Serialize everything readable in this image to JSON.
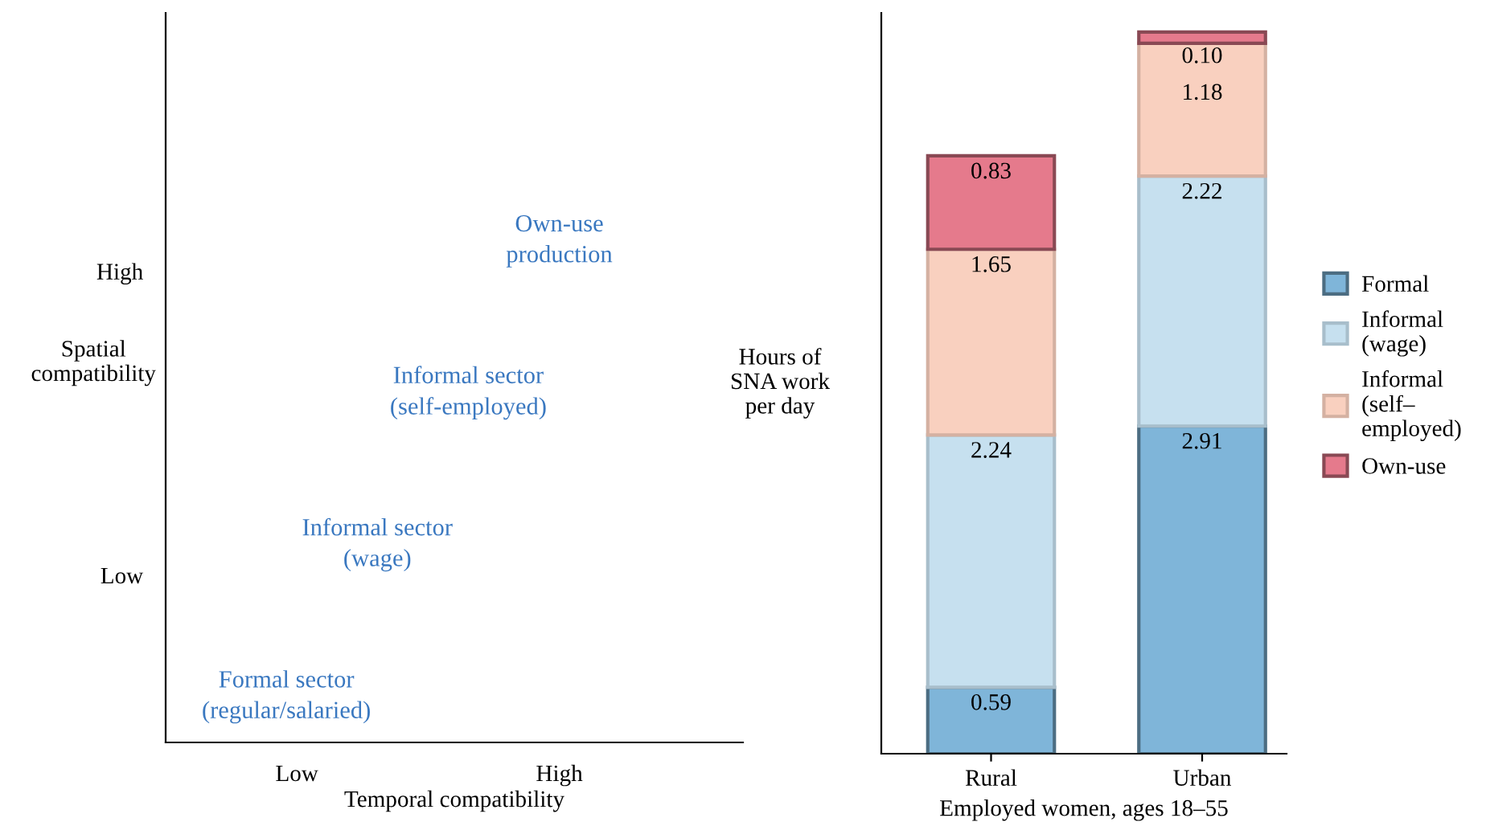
{
  "chart_data": [
    {
      "type": "other",
      "xlabel": "Temporal compatibility",
      "ylabel": "Spatial\ncompatibility",
      "color": "#3a78c0",
      "categories": [
        "Low",
        "High"
      ],
      "y_categories": [
        "High",
        "Low"
      ],
      "annotations": [
        "Own-use\nproduction",
        "Informal sector\n(self-employed)",
        "Informal sector\n(wage)",
        "Formal sector\n(regular/salaried)"
      ]
    },
    {
      "type": "bar",
      "stacked": true,
      "legend": "right",
      "xlabel": "Employed women, ages 18–55",
      "ylabel": "Hours of\nSNA work\nper day",
      "categories": [
        "Rural",
        "Urban"
      ],
      "ylim": [
        0,
        6.58
      ],
      "series": [
        {
          "name": "Formal",
          "color": "#7fb5d9",
          "values": [
            0.59,
            2.91
          ],
          "value_labels": [
            "0.59",
            "2.91"
          ]
        },
        {
          "name": "Informal\n(wage)",
          "color": "#c6e0ef",
          "values": [
            2.24,
            2.22
          ],
          "value_labels": [
            "2.24",
            "2.22"
          ]
        },
        {
          "name": "Informal\n(self–\nemployed)",
          "color": "#f9d0bf",
          "values": [
            1.65,
            1.18
          ],
          "value_labels": [
            "1.65",
            "1.18"
          ]
        },
        {
          "name": "Own-use",
          "color": "#e57a8c",
          "values": [
            0.83,
            0.1
          ],
          "value_labels": [
            "0.83",
            "0.10"
          ]
        }
      ]
    }
  ]
}
